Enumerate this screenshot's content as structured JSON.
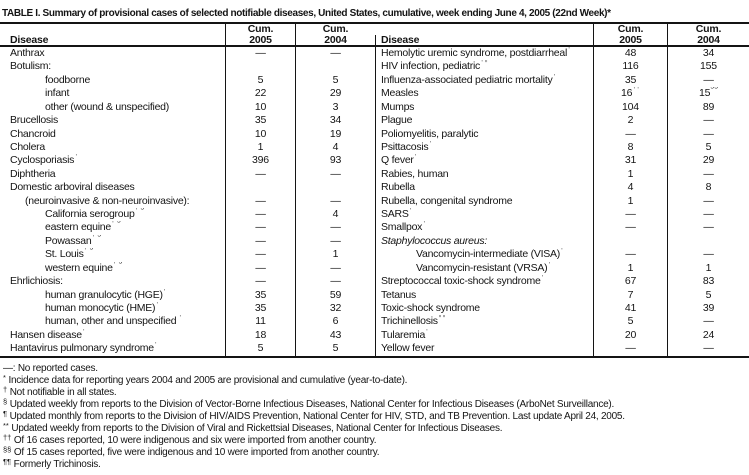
{
  "title": "TABLE I. Summary of provisional cases of selected notifiable diseases, United States, cumulative, week ending June 4, 2005 (22nd Week)*",
  "header": {
    "disease": "Disease",
    "cum": "Cum.",
    "y2005": "2005",
    "y2004": "2004"
  },
  "table": {
    "left_rows": [
      {
        "label": "Anthrax",
        "v5": "—",
        "v4": "—"
      },
      {
        "label": "Botulism:"
      },
      {
        "label": "foodborne",
        "ind": 2,
        "v5": "5",
        "v4": "5"
      },
      {
        "label": "infant",
        "ind": 2,
        "v5": "22",
        "v4": "29"
      },
      {
        "label": "other (wound & unspecified)",
        "ind": 2,
        "v5": "10",
        "v4": "3"
      },
      {
        "label": "Brucellosis",
        "v5": "35",
        "v4": "34"
      },
      {
        "label": "Chancroid",
        "v5": "10",
        "v4": "19"
      },
      {
        "label": "Cholera",
        "v5": "1",
        "v4": "4"
      },
      {
        "label": "Cyclosporiasis",
        "sup": "†",
        "v5": "396",
        "v4": "93"
      },
      {
        "label": "Diphtheria",
        "v5": "—",
        "v4": "—"
      },
      {
        "label": "Domestic arboviral diseases"
      },
      {
        "label": "(neuroinvasive & non-neuroinvasive):",
        "ind": 1,
        "v5": "—",
        "v4": "—"
      },
      {
        "label": "California serogroup",
        "sup": "† §",
        "ind": 2,
        "v5": "—",
        "v4": "4"
      },
      {
        "label": "eastern equine",
        "sup": "† §",
        "ind": 2,
        "v5": "—",
        "v4": "—"
      },
      {
        "label": "Powassan",
        "sup": "† §",
        "ind": 2,
        "v5": "—",
        "v4": "—"
      },
      {
        "label": "St. Louis",
        "sup": "† §",
        "ind": 2,
        "v5": "—",
        "v4": "1"
      },
      {
        "label": "western equine",
        "sup": "† §",
        "ind": 2,
        "v5": "—",
        "v4": "—"
      },
      {
        "label": "Ehrlichiosis:",
        "v5": "—",
        "v4": "—"
      },
      {
        "label": "human granulocytic (HGE)",
        "sup": "†",
        "ind": 2,
        "v5": "35",
        "v4": "59"
      },
      {
        "label": "human monocytic (HME)",
        "sup": "†",
        "ind": 2,
        "v5": "35",
        "v4": "32"
      },
      {
        "label": "human, other and unspecified",
        "sup": " †",
        "ind": 2,
        "v5": "11",
        "v4": "6"
      },
      {
        "label": "Hansen disease",
        "sup": "†",
        "v5": "18",
        "v4": "43"
      },
      {
        "label": "Hantavirus pulmonary syndrome",
        "sup": "†",
        "v5": "5",
        "v4": "5"
      }
    ],
    "right_rows": [
      {
        "label": "Hemolytic uremic syndrome, postdiarrheal",
        "sup": "†",
        "v5": "48",
        "v4": "34"
      },
      {
        "label": "HIV infection, pediatric",
        "sup": "†¶",
        "v5": "116",
        "v4": "155"
      },
      {
        "label": "Influenza-associated pediatric mortality",
        "sup": "†**",
        "v5": "35",
        "v4": "—"
      },
      {
        "label": "Measles",
        "v5": "16",
        "v5s": "††",
        "v4": "15",
        "v4s": "§§"
      },
      {
        "label": "Mumps",
        "v5": "104",
        "v4": "89"
      },
      {
        "label": "Plague",
        "v5": "2",
        "v4": "—"
      },
      {
        "label": "Poliomyelitis, paralytic",
        "v5": "—",
        "v4": "—"
      },
      {
        "label": "Psittacosis",
        "sup": "†",
        "v5": "8",
        "v4": "5"
      },
      {
        "label": "Q fever",
        "sup": "†",
        "v5": "31",
        "v4": "29"
      },
      {
        "label": "Rabies, human",
        "v5": "1",
        "v4": "—"
      },
      {
        "label": "Rubella",
        "v5": "4",
        "v4": "8"
      },
      {
        "label": "Rubella, congenital syndrome",
        "v5": "1",
        "v4": "—"
      },
      {
        "label": "SARS",
        "sup": "† **",
        "v5": "—",
        "v4": "—"
      },
      {
        "label": "Smallpox",
        "sup": "†",
        "v5": "—",
        "v4": "—"
      },
      {
        "label": "Staphylococcus aureus:",
        "it": true
      },
      {
        "label": "Vancomycin-intermediate (VISA)",
        "sup": "†",
        "ind": 2,
        "v5": "—",
        "v4": "—"
      },
      {
        "label": "Vancomycin-resistant (VRSA)",
        "sup": "†",
        "ind": 2,
        "v5": "1",
        "v4": "1"
      },
      {
        "label": "Streptococcal toxic-shock syndrome",
        "sup": "†",
        "v5": "67",
        "v4": "83"
      },
      {
        "label": "Tetanus",
        "v5": "7",
        "v4": "5"
      },
      {
        "label": "Toxic-shock syndrome",
        "v5": "41",
        "v4": "39"
      },
      {
        "label": "Trichinellosis",
        "sup": "¶¶",
        "v5": "5",
        "v4": "—"
      },
      {
        "label": "Tularemia",
        "sup": "†",
        "v5": "20",
        "v4": "24"
      },
      {
        "label": "Yellow fever",
        "v5": "—",
        "v4": "—"
      }
    ]
  },
  "footnotes": [
    {
      "marker": "—:",
      "sup": false,
      "text": "No reported cases."
    },
    {
      "marker": "*",
      "sup": true,
      "text": "Incidence data for reporting years 2004 and 2005 are provisional and cumulative (year-to-date)."
    },
    {
      "marker": "†",
      "sup": true,
      "text": "Not notifiable in all states."
    },
    {
      "marker": "§",
      "sup": true,
      "text": "Updated weekly from reports to the Division of Vector-Borne Infectious Diseases, National Center for Infectious Diseases (ArboNet Surveillance)."
    },
    {
      "marker": "¶",
      "sup": true,
      "text": "Updated monthly from reports to the Division of HIV/AIDS Prevention, National Center for HIV, STD, and TB Prevention. Last update April 24, 2005."
    },
    {
      "marker": "**",
      "sup": true,
      "text": "Updated weekly from reports to the Division of Viral and Rickettsial Diseases, National Center for Infectious Diseases."
    },
    {
      "marker": "††",
      "sup": true,
      "text": "Of 16 cases reported, 10 were indigenous and six were imported from another country."
    },
    {
      "marker": "§§",
      "sup": true,
      "text": "Of 15 cases reported, five were indigenous and 10 were imported from another country."
    },
    {
      "marker": "¶¶",
      "sup": true,
      "text": "Formerly Trichinosis."
    }
  ]
}
